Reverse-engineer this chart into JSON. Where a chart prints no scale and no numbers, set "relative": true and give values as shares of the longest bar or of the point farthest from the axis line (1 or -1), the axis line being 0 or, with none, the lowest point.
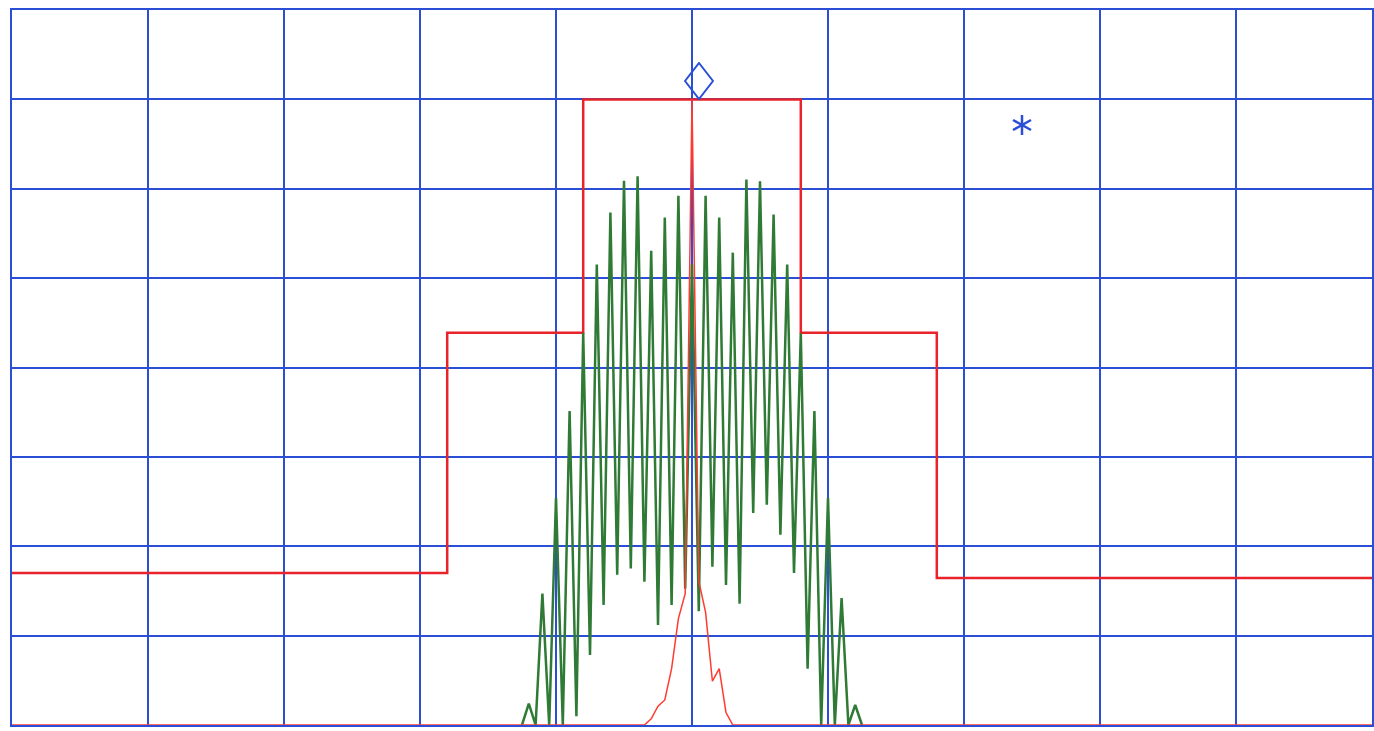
{
  "chart_data": {
    "type": "line",
    "relative": true,
    "grid": true,
    "marker": "none",
    "categories": [
      null,
      null,
      null,
      null,
      null,
      null,
      null,
      null,
      null,
      null,
      null,
      null,
      null,
      null,
      null,
      null,
      null,
      null,
      null,
      null,
      null,
      null,
      null,
      null,
      null,
      null,
      null,
      null,
      null,
      null,
      null,
      null,
      null,
      null,
      null,
      null,
      null,
      null,
      null,
      null,
      null,
      null,
      null,
      null,
      null,
      null,
      null,
      null,
      null,
      null,
      null,
      null,
      null,
      null,
      null,
      null,
      null,
      null,
      null,
      null,
      null,
      null,
      null,
      null,
      null,
      null,
      null,
      null,
      null,
      null,
      null,
      null,
      null,
      null,
      null,
      null,
      null,
      null,
      null,
      null,
      null,
      null,
      null,
      null,
      null,
      null,
      null,
      null,
      null,
      null,
      null,
      null,
      null,
      null,
      null,
      null,
      null,
      null,
      null,
      null,
      null,
      null,
      null,
      null,
      null,
      null,
      null,
      null,
      null,
      null,
      null,
      null,
      null,
      null,
      null,
      null,
      null,
      null,
      null,
      null,
      null,
      null,
      null,
      null,
      null,
      null,
      null,
      null,
      null,
      null,
      null,
      null,
      null,
      null,
      null,
      null,
      null,
      null,
      null,
      null,
      null,
      null,
      null,
      null,
      null,
      null,
      null,
      null,
      null,
      null,
      null,
      null,
      null,
      null,
      null,
      null,
      null,
      null,
      null,
      null,
      null,
      null,
      null,
      null,
      null,
      null,
      null,
      null,
      null,
      null,
      null,
      null,
      null,
      null,
      null,
      null,
      null,
      null,
      null,
      null,
      null,
      null,
      null,
      null,
      null,
      null,
      null,
      null,
      null,
      null,
      null,
      null,
      null,
      null,
      null,
      null,
      null,
      null,
      null,
      null,
      null
    ],
    "series": [
      {
        "type": "step",
        "color": "#e8232a",
        "values": [
          0.243,
          0.243,
          0.243,
          0.243,
          0.243,
          0.243,
          0.243,
          0.243,
          0.243,
          0.243,
          0.243,
          0.243,
          0.243,
          0.243,
          0.243,
          0.243,
          0.243,
          0.243,
          0.243,
          0.243,
          0.243,
          0.243,
          0.243,
          0.243,
          0.243,
          0.243,
          0.243,
          0.243,
          0.243,
          0.243,
          0.243,
          0.243,
          0.243,
          0.243,
          0.243,
          0.243,
          0.243,
          0.243,
          0.243,
          0.243,
          0.243,
          0.243,
          0.243,
          0.243,
          0.243,
          0.243,
          0.243,
          0.243,
          0.243,
          0.243,
          0.243,
          0.243,
          0.243,
          0.243,
          0.243,
          0.243,
          0.243,
          0.243,
          0.243,
          0.243,
          0.243,
          0.243,
          0.243,
          0.243,
          0.627,
          0.627,
          0.627,
          0.627,
          0.627,
          0.627,
          0.627,
          0.627,
          0.627,
          0.627,
          0.627,
          0.627,
          0.627,
          0.627,
          0.627,
          0.627,
          0.627,
          0.627,
          0.627,
          0.627,
          1,
          1,
          1,
          1,
          1,
          1,
          1,
          1,
          1,
          1,
          1,
          1,
          1,
          1,
          1,
          1,
          1,
          1,
          1,
          1,
          1,
          1,
          1,
          1,
          1,
          1,
          1,
          1,
          1,
          1,
          1,
          1,
          0.627,
          0.627,
          0.627,
          0.627,
          0.627,
          0.627,
          0.627,
          0.627,
          0.627,
          0.627,
          0.627,
          0.627,
          0.627,
          0.627,
          0.627,
          0.627,
          0.627,
          0.627,
          0.627,
          0.627,
          0.235,
          0.235,
          0.235,
          0.235,
          0.235,
          0.235,
          0.235,
          0.235,
          0.235,
          0.235,
          0.235,
          0.235,
          0.235,
          0.235,
          0.235,
          0.235,
          0.235,
          0.235,
          0.235,
          0.235,
          0.235,
          0.235,
          0.235,
          0.235,
          0.235,
          0.235,
          0.235,
          0.235,
          0.235,
          0.235,
          0.235,
          0.235,
          0.235,
          0.235,
          0.235,
          0.235,
          0.235,
          0.235,
          0.235,
          0.235,
          0.235,
          0.235,
          0.235,
          0.235,
          0.235,
          0.235,
          0.235,
          0.235,
          0.235,
          0.235,
          0.235,
          0.235,
          0.235,
          0.235,
          0.235,
          0.235,
          0.235,
          0.235,
          0.235,
          0.235,
          0.235,
          0.235,
          0.235,
          0.235,
          0.235
        ]
      },
      {
        "color": "#2f7a35",
        "values": [
          null,
          null,
          null,
          null,
          null,
          null,
          null,
          null,
          null,
          null,
          null,
          null,
          null,
          null,
          null,
          null,
          null,
          null,
          null,
          null,
          null,
          null,
          null,
          null,
          null,
          null,
          null,
          null,
          null,
          null,
          null,
          null,
          null,
          null,
          null,
          null,
          null,
          null,
          null,
          null,
          null,
          null,
          null,
          null,
          null,
          null,
          null,
          null,
          null,
          null,
          null,
          null,
          null,
          null,
          null,
          null,
          null,
          null,
          null,
          null,
          null,
          null,
          null,
          null,
          null,
          null,
          null,
          null,
          null,
          null,
          null,
          null,
          null,
          null,
          null,
          0,
          0.034,
          0,
          0.21,
          0,
          0.363,
          0,
          0.502,
          0.014,
          0.627,
          0.112,
          0.736,
          0.192,
          0.819,
          0.24,
          0.87,
          0.25,
          0.877,
          0.229,
          0.758,
          0.16,
          0.811,
          0.192,
          0.846,
          0.218,
          0.736,
          0.182,
          0.846,
          0.253,
          0.811,
          0.224,
          0.755,
          0.194,
          0.872,
          0.339,
          0.869,
          0.352,
          0.816,
          0.304,
          0.736,
          0.243,
          0.626,
          0.09,
          0.502,
          0,
          0.363,
          0,
          0.203,
          0,
          0.032,
          0,
          null,
          null,
          null,
          null,
          null,
          null,
          null,
          null,
          null,
          null,
          null,
          null,
          null,
          null,
          null,
          null,
          null,
          null,
          null,
          null,
          null,
          null,
          null,
          null,
          null,
          null,
          null,
          null,
          null,
          null,
          null,
          null,
          null,
          null,
          null,
          null,
          null,
          null,
          null,
          null,
          null,
          null,
          null,
          null,
          null,
          null,
          null,
          null,
          null,
          null,
          null,
          null,
          null,
          null,
          null,
          null,
          null,
          null,
          null,
          null,
          null,
          null,
          null,
          null,
          null,
          null,
          null,
          null,
          null,
          null,
          null,
          null,
          null,
          null,
          null
        ]
      },
      {
        "color": "#ff3b30",
        "values": [
          0,
          0,
          0,
          0,
          0,
          0,
          0,
          0,
          0,
          0,
          0,
          0,
          0,
          0,
          0,
          0,
          0,
          0,
          0,
          0,
          0,
          0,
          0,
          0,
          0,
          0,
          0,
          0,
          0,
          0,
          0,
          0,
          0,
          0,
          0,
          0,
          0,
          0,
          0,
          0,
          0,
          0,
          0,
          0,
          0,
          0,
          0,
          0,
          0,
          0,
          0,
          0,
          0,
          0,
          0,
          0,
          0,
          0,
          0,
          0,
          0,
          0,
          0,
          0,
          0,
          0,
          0,
          0,
          0,
          0,
          0,
          0,
          0,
          0,
          0,
          0,
          0,
          0,
          0,
          0,
          0,
          0,
          0,
          0,
          0,
          0,
          0,
          0,
          0,
          0,
          0,
          0,
          0,
          0,
          0.01,
          0.03,
          0.04,
          0.09,
          0.17,
          0.21,
          1,
          0.23,
          0.18,
          0.07,
          0.09,
          0.02,
          0,
          0,
          0,
          0,
          0,
          0,
          0,
          0,
          0,
          0,
          0,
          0,
          0,
          0,
          0,
          0,
          0,
          0,
          0,
          0,
          0,
          0,
          0,
          0,
          0,
          0,
          0,
          0,
          0,
          0,
          0,
          0,
          0,
          0,
          0,
          0,
          0,
          0,
          0,
          0,
          0,
          0,
          0,
          0,
          0,
          0,
          0,
          0,
          0,
          0,
          0,
          0,
          0,
          0,
          0,
          0,
          0,
          0,
          0,
          0,
          0,
          0,
          0,
          0,
          0,
          0,
          0,
          0,
          0,
          0,
          0,
          0,
          0,
          0,
          0,
          0,
          0,
          0,
          0,
          0,
          0,
          0,
          0,
          0,
          0,
          0,
          0,
          0,
          0,
          0,
          0,
          0,
          0,
          0,
          0
        ]
      }
    ]
  }
}
